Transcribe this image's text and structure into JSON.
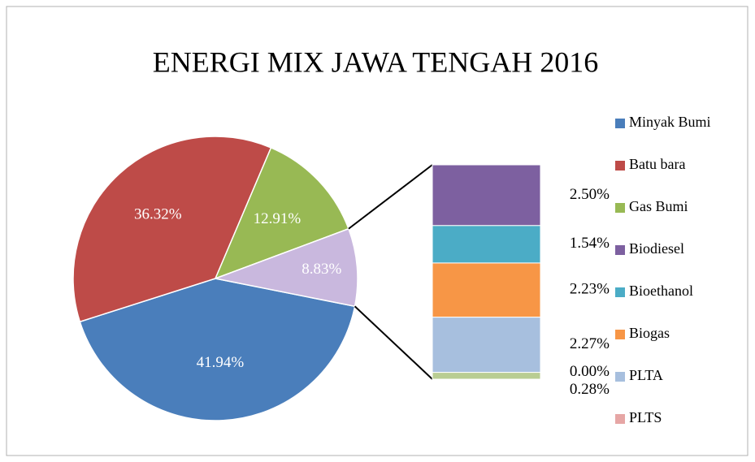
{
  "chart_data": {
    "type": "pie",
    "title": "ENERGI MIX JAWA TENGAH 2016",
    "categories": [
      "Minyak Bumi",
      "Batu bara",
      "Gas Bumi",
      null
    ],
    "values": [
      41.94,
      36.32,
      12.91,
      8.83
    ],
    "value_labels": [
      "41.94%",
      "36.32%",
      "12.91%",
      "8.83%"
    ],
    "colors": [
      "#4a7ebb",
      "#be4b48",
      "#98b954",
      "#c9b8de"
    ],
    "bar": {
      "categories": [
        "Biodiesel",
        "Bioethanol",
        "Biogas",
        "PLTA",
        "PLTS",
        null
      ],
      "values": [
        2.5,
        1.54,
        2.23,
        2.27,
        0.0,
        0.28
      ],
      "value_labels": [
        "2.50%",
        "1.54%",
        "2.23%",
        "2.27%",
        "0.00%",
        "0.28%"
      ],
      "colors": [
        "#7d60a0",
        "#4bacc6",
        "#f79646",
        "#a7bfde",
        "#e6a6a5",
        "#b9cd93"
      ]
    },
    "legend": "right"
  }
}
